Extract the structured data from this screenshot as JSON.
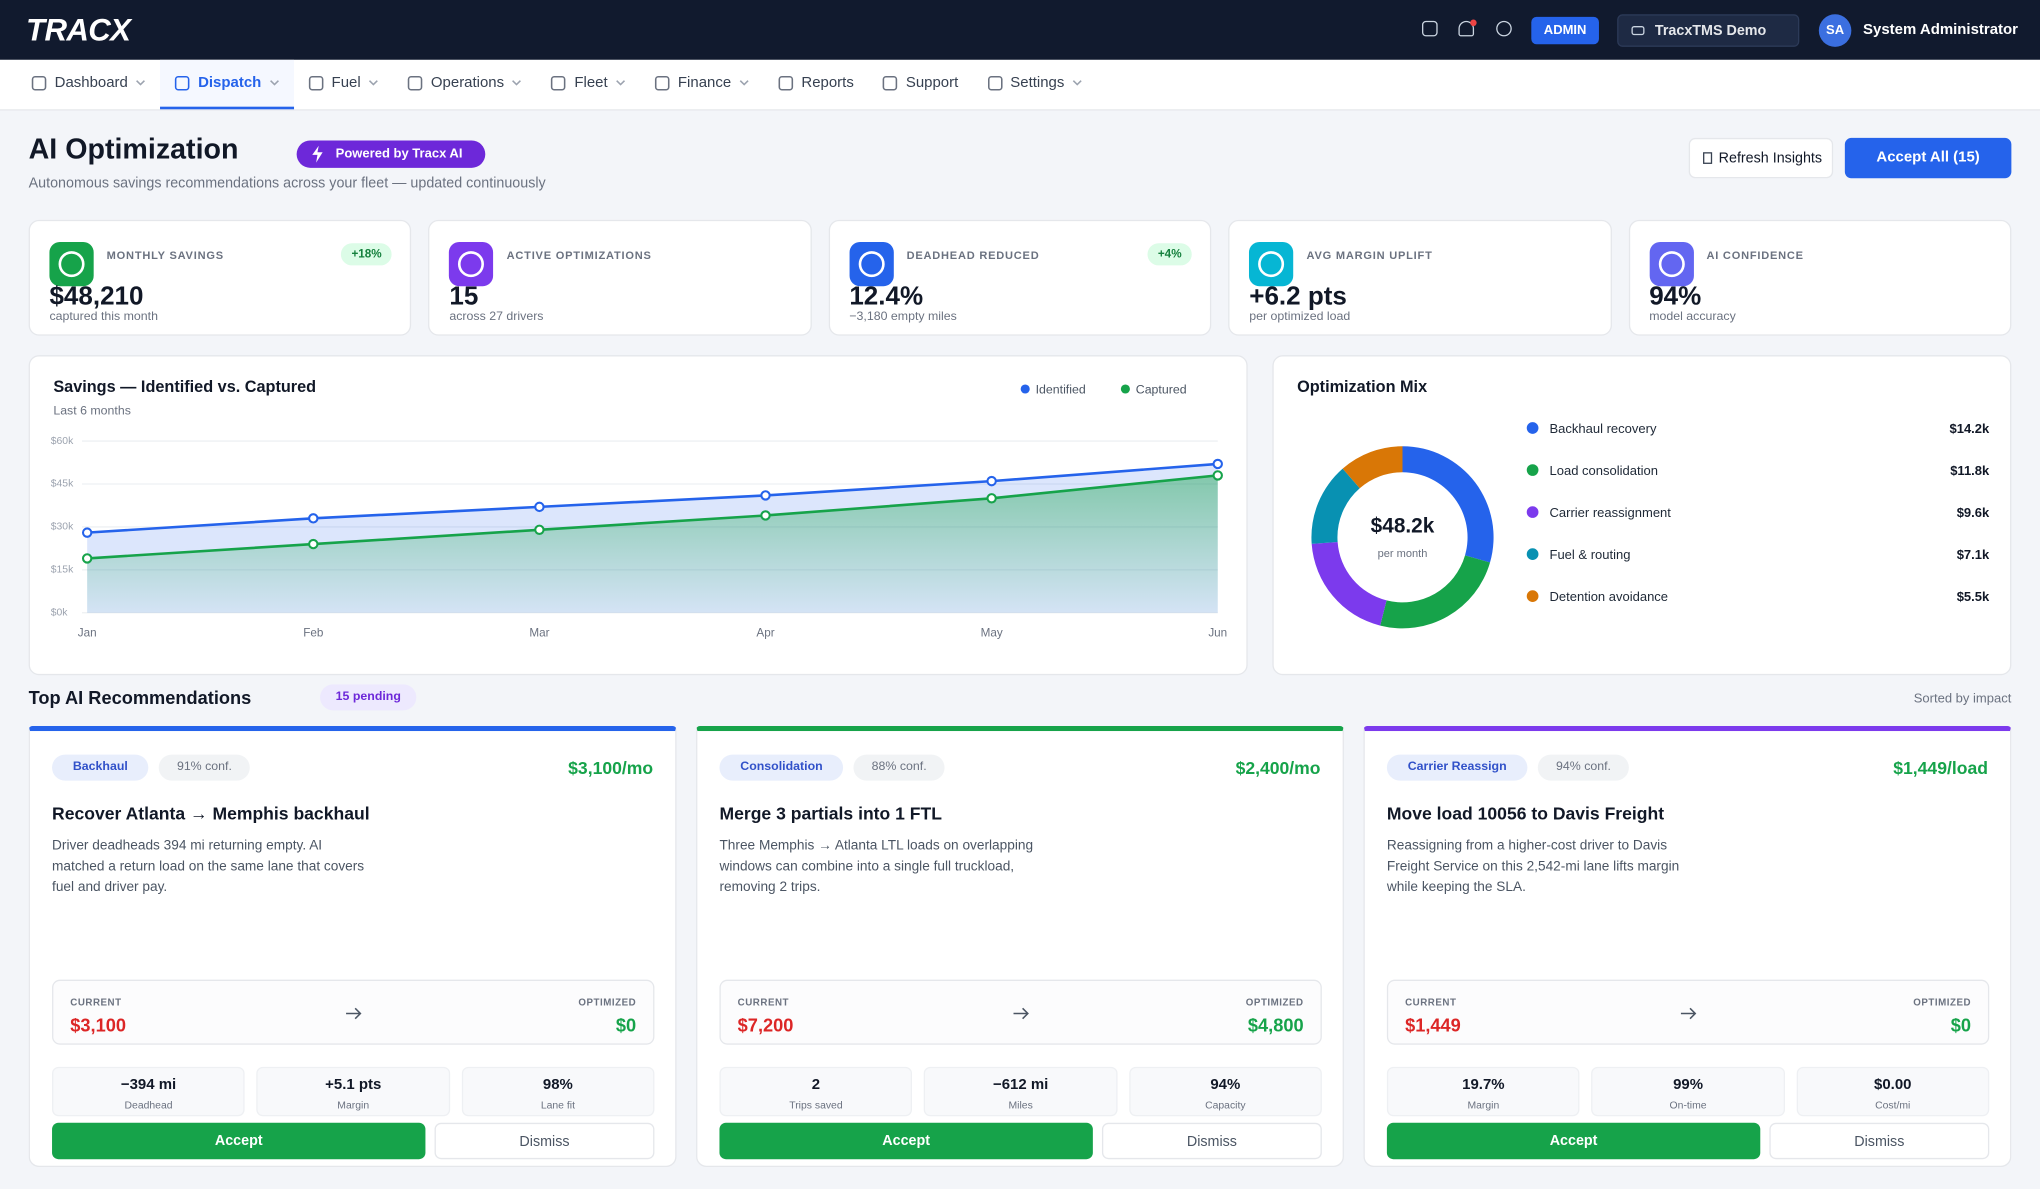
{
  "header": {
    "logo": "TRACX",
    "badge": "ADMIN",
    "workspace": "TracxTMS Demo",
    "avatar": "SA",
    "user": "System Administrator"
  },
  "nav": [
    {
      "label": "Dashboard",
      "dropdown": true
    },
    {
      "label": "Dispatch",
      "dropdown": true,
      "active": true
    },
    {
      "label": "Fuel",
      "dropdown": true
    },
    {
      "label": "Operations",
      "dropdown": true
    },
    {
      "label": "Fleet",
      "dropdown": true
    },
    {
      "label": "Finance",
      "dropdown": true
    },
    {
      "label": "Reports"
    },
    {
      "label": "Support"
    },
    {
      "label": "Settings",
      "dropdown": true
    }
  ],
  "page": {
    "title": "AI Optimization",
    "badge": "Powered by Tracx AI",
    "subtitle": "Autonomous savings recommendations across your fleet — updated continuously",
    "refresh": "Refresh Insights",
    "accept_all": "Accept All (15)"
  },
  "kpis": [
    {
      "label": "MONTHLY SAVINGS",
      "value": "$48,210",
      "note": "captured this month",
      "delta": "+18%",
      "color": "#16a34a"
    },
    {
      "label": "ACTIVE OPTIMIZATIONS",
      "value": "15",
      "note": "across 27 drivers",
      "color": "#7c3aed"
    },
    {
      "label": "DEADHEAD REDUCED",
      "value": "12.4%",
      "note": "−3,180 empty miles",
      "delta": "+4%",
      "color": "#2563eb"
    },
    {
      "label": "AVG MARGIN UPLIFT",
      "value": "+6.2 pts",
      "note": "per optimized load",
      "color": "#06b6d4"
    },
    {
      "label": "AI CONFIDENCE",
      "value": "94%",
      "note": "model accuracy",
      "color": "#6366f1"
    }
  ],
  "chart_data": [
    {
      "type": "line",
      "title": "Savings — Identified vs. Captured",
      "subtitle": "Last 6 months",
      "categories": [
        "Jan",
        "Feb",
        "Mar",
        "Apr",
        "May",
        "Jun"
      ],
      "series": [
        {
          "name": "Identified",
          "color": "#2563eb",
          "values": [
            28000,
            33000,
            37000,
            41000,
            46000,
            52000
          ]
        },
        {
          "name": "Captured",
          "color": "#16a34a",
          "values": [
            19000,
            24000,
            29000,
            34000,
            40000,
            48000
          ]
        }
      ],
      "ylim": [
        0,
        60000
      ],
      "yticks": [
        {
          "value": 0,
          "label": "$0k"
        },
        {
          "value": 15000,
          "label": "$15k"
        },
        {
          "value": 30000,
          "label": "$30k"
        },
        {
          "value": 45000,
          "label": "$45k"
        },
        {
          "value": 60000,
          "label": "$60k"
        }
      ],
      "grid": true,
      "legend": "top-right"
    },
    {
      "type": "pie",
      "donut": true,
      "title": "Optimization Mix",
      "center_label": "$48.2k",
      "center_sublabel": "per month",
      "categories": [
        "Backhaul recovery",
        "Load consolidation",
        "Carrier reassignment",
        "Fuel & routing",
        "Detention avoidance"
      ],
      "values": [
        14.2,
        11.8,
        9.6,
        7.1,
        5.5
      ],
      "value_labels": [
        "$14.2k",
        "$11.8k",
        "$9.6k",
        "$7.1k",
        "$5.5k"
      ],
      "colors": [
        "#2563eb",
        "#16a34a",
        "#7c3aed",
        "#0891b2",
        "#d97706"
      ]
    }
  ],
  "recommendations": {
    "title": "Top AI Recommendations",
    "pending": "15 pending",
    "sort": "Sorted by impact",
    "cards": [
      {
        "color": "#2563eb",
        "tag": "Backhaul",
        "confidence": "91% conf.",
        "impact": "$3,100/mo",
        "title": "Recover Atlanta → Memphis backhaul",
        "description": "Driver deadheads 394 mi returning empty. AI matched a return load on the same lane that covers fuel and driver pay.",
        "current_label": "CURRENT",
        "current": "$3,100",
        "optimized_label": "OPTIMIZED",
        "optimized": "$0",
        "metrics": [
          {
            "value": "−394 mi",
            "label": "Deadhead"
          },
          {
            "value": "+5.1 pts",
            "label": "Margin"
          },
          {
            "value": "98%",
            "label": "Lane fit"
          }
        ],
        "accept": "Accept",
        "dismiss": "Dismiss"
      },
      {
        "color": "#16a34a",
        "tag": "Consolidation",
        "confidence": "88% conf.",
        "impact": "$2,400/mo",
        "title": "Merge 3 partials into 1 FTL",
        "description": "Three Memphis → Atlanta LTL loads on overlapping windows can combine into a single full truckload, removing 2 trips.",
        "current_label": "CURRENT",
        "current": "$7,200",
        "optimized_label": "OPTIMIZED",
        "optimized": "$4,800",
        "metrics": [
          {
            "value": "2",
            "label": "Trips saved"
          },
          {
            "value": "−612 mi",
            "label": "Miles"
          },
          {
            "value": "94%",
            "label": "Capacity"
          }
        ],
        "accept": "Accept",
        "dismiss": "Dismiss"
      },
      {
        "color": "#7c3aed",
        "tag": "Carrier Reassign",
        "confidence": "94% conf.",
        "impact": "$1,449/load",
        "title": "Move load 10056 to Davis Freight",
        "description": "Reassigning from a higher-cost driver to Davis Freight Service on this 2,542-mi lane lifts margin while keeping the SLA.",
        "current_label": "CURRENT",
        "current": "$1,449",
        "optimized_label": "OPTIMIZED",
        "optimized": "$0",
        "metrics": [
          {
            "value": "19.7%",
            "label": "Margin"
          },
          {
            "value": "99%",
            "label": "On-time"
          },
          {
            "value": "$0.00",
            "label": "Cost/mi"
          }
        ],
        "accept": "Accept",
        "dismiss": "Dismiss"
      }
    ]
  }
}
